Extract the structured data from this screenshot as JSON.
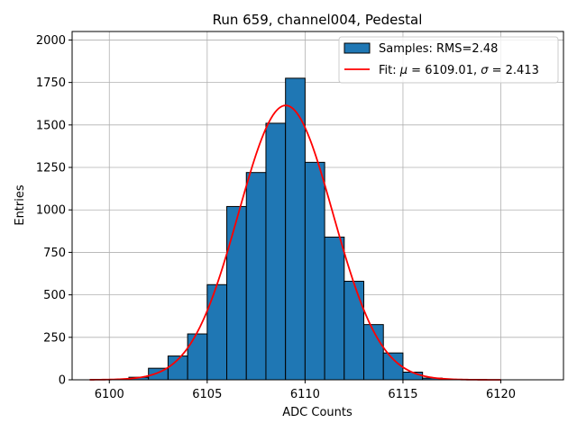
{
  "chart_data": {
    "type": "bar",
    "title": "Run 659, channel004, Pedestal",
    "xlabel": "ADC Counts",
    "ylabel": "Entries",
    "xlim": [
      6098.1,
      6123.2
    ],
    "ylim": [
      0,
      2050
    ],
    "grid": true,
    "xticks": [
      6100,
      6105,
      6110,
      6115,
      6120
    ],
    "yticks": [
      0,
      250,
      500,
      750,
      1000,
      1250,
      1500,
      1750,
      2000
    ],
    "xtick_labels": [
      "6100",
      "6105",
      "6110",
      "6115",
      "6120"
    ],
    "ytick_labels": [
      "0",
      "250",
      "500",
      "750",
      "1000",
      "1250",
      "1500",
      "1750",
      "2000"
    ],
    "legend_position": "upper right",
    "histogram": {
      "name": "Samples: RMS=2.48",
      "color": "#1f77b4",
      "edgecolor": "#000000",
      "bins": [
        {
          "x0": 6100,
          "x1": 6101,
          "count": 2
        },
        {
          "x0": 6101,
          "x1": 6102,
          "count": 15
        },
        {
          "x0": 6102,
          "x1": 6103,
          "count": 68
        },
        {
          "x0": 6103,
          "x1": 6104,
          "count": 140
        },
        {
          "x0": 6104,
          "x1": 6105,
          "count": 270
        },
        {
          "x0": 6105,
          "x1": 6106,
          "count": 560
        },
        {
          "x0": 6106,
          "x1": 6107,
          "count": 1020
        },
        {
          "x0": 6107,
          "x1": 6108,
          "count": 1220
        },
        {
          "x0": 6108,
          "x1": 6109,
          "count": 1510
        },
        {
          "x0": 6109,
          "x1": 6110,
          "count": 1775
        },
        {
          "x0": 6110,
          "x1": 6111,
          "count": 1280
        },
        {
          "x0": 6111,
          "x1": 6112,
          "count": 840
        },
        {
          "x0": 6112,
          "x1": 6113,
          "count": 580
        },
        {
          "x0": 6113,
          "x1": 6114,
          "count": 325
        },
        {
          "x0": 6114,
          "x1": 6115,
          "count": 158
        },
        {
          "x0": 6115,
          "x1": 6116,
          "count": 45
        },
        {
          "x0": 6116,
          "x1": 6117,
          "count": 10
        },
        {
          "x0": 6117,
          "x1": 6118,
          "count": 2
        }
      ]
    },
    "fit": {
      "name_prefix": "Fit: ",
      "mu_symbol": "μ",
      "mu_text": " = 6109.01, ",
      "sigma_symbol": "σ",
      "sigma_text": " = 2.413",
      "color": "#ff0000",
      "mu": 6109.01,
      "sigma": 2.413,
      "amplitude": 1615,
      "x_range": [
        6099,
        6120
      ]
    }
  }
}
